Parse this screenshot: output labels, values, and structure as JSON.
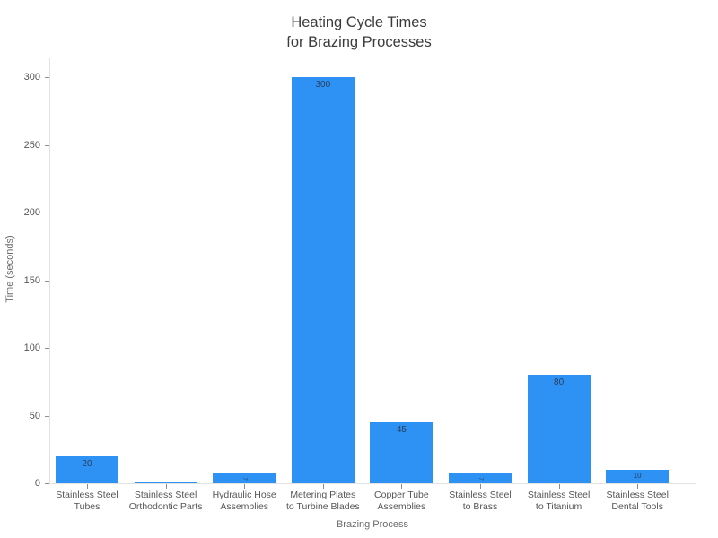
{
  "chart_data": {
    "type": "bar",
    "title": "Heating Cycle Times\nfor Brazing Processes",
    "xlabel": "Brazing Process",
    "ylabel": "Time (seconds)",
    "categories": [
      "Stainless Steel\nTubes",
      "Stainless Steel\nOrthodontic Parts",
      "Hydraulic Hose\nAssemblies",
      "Metering Plates\nto Turbine Blades",
      "Copper Tube\nAssemblies",
      "Stainless Steel\nto Brass",
      "Stainless Steel\nto Titanium",
      "Stainless Steel\nDental Tools"
    ],
    "values": [
      20,
      1,
      7,
      300,
      45,
      7,
      80,
      10
    ],
    "bar_labels": [
      "20",
      "",
      "7",
      "300",
      "45",
      "7",
      "80",
      "10"
    ],
    "yticks": [
      0,
      50,
      100,
      150,
      200,
      250,
      300
    ],
    "ylim": [
      0,
      300
    ],
    "grid": false,
    "legend": "none",
    "colors": {
      "bar": "#2e92f5",
      "title_text": "#3b3b3b",
      "axis_title_text": "#6b6b6b",
      "tick_text": "#555555",
      "value_text": "#2a3f5f",
      "axis_line": "#e2e2e2",
      "tick_mark": "#8f8f8f",
      "background": "#ffffff"
    }
  }
}
